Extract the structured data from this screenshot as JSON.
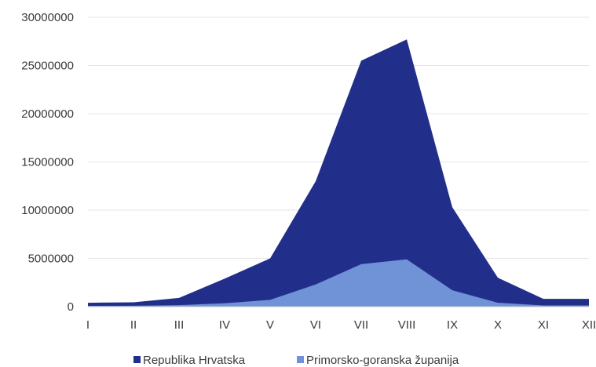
{
  "chart_data": {
    "type": "area",
    "categories": [
      "I",
      "II",
      "III",
      "IV",
      "V",
      "VI",
      "VII",
      "VIII",
      "IX",
      "X",
      "XI",
      "XII"
    ],
    "series": [
      {
        "name": "Republika Hrvatska",
        "color": "#222f8a",
        "values": [
          400000,
          450000,
          900000,
          2900000,
          5000000,
          13000000,
          25500000,
          27700000,
          10300000,
          3000000,
          800000,
          800000
        ]
      },
      {
        "name": "Primorsko-goranska županija",
        "color": "#6f93d6",
        "values": [
          80000,
          90000,
          150000,
          350000,
          700000,
          2300000,
          4400000,
          4900000,
          1700000,
          400000,
          120000,
          120000
        ]
      }
    ],
    "ylim": [
      0,
      30000000
    ],
    "yticks": [
      0,
      5000000,
      10000000,
      15000000,
      20000000,
      25000000,
      30000000
    ],
    "grid": true,
    "legend_position": "bottom"
  }
}
